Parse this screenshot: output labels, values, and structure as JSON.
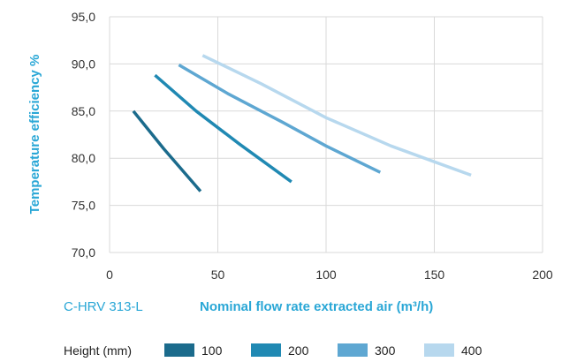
{
  "model_label": "C-HRV 313-L",
  "chart_data": {
    "type": "line",
    "title": "",
    "xlabel": "Nominal flow rate extracted air (m³/h)",
    "ylabel": "Temperature efficiency %",
    "xlim": [
      0,
      200
    ],
    "ylim": [
      70,
      95
    ],
    "x_ticks": [
      0,
      50,
      100,
      150,
      200
    ],
    "x_tick_labels": [
      "0",
      "50",
      "100",
      "150",
      "200"
    ],
    "y_ticks": [
      70,
      75,
      80,
      85,
      90,
      95
    ],
    "y_tick_labels": [
      "70,0",
      "75,0",
      "80,0",
      "85,0",
      "90,0",
      "95,0"
    ],
    "grid": true,
    "legend_title": "Height (mm)",
    "legend_position": "bottom",
    "series": [
      {
        "name": "100",
        "color": "#1b6b8c",
        "points": [
          [
            11,
            85.0
          ],
          [
            25,
            81.0
          ],
          [
            42,
            76.5
          ]
        ]
      },
      {
        "name": "200",
        "color": "#2089b3",
        "points": [
          [
            21,
            88.8
          ],
          [
            40,
            85.0
          ],
          [
            60,
            81.5
          ],
          [
            84,
            77.5
          ]
        ]
      },
      {
        "name": "300",
        "color": "#5ea7d2",
        "points": [
          [
            32,
            89.9
          ],
          [
            55,
            86.8
          ],
          [
            80,
            83.8
          ],
          [
            100,
            81.3
          ],
          [
            125,
            78.5
          ]
        ]
      },
      {
        "name": "400",
        "color": "#b7d8ee",
        "points": [
          [
            43,
            90.9
          ],
          [
            70,
            87.9
          ],
          [
            100,
            84.3
          ],
          [
            130,
            81.3
          ],
          [
            167,
            78.2
          ]
        ]
      }
    ]
  }
}
